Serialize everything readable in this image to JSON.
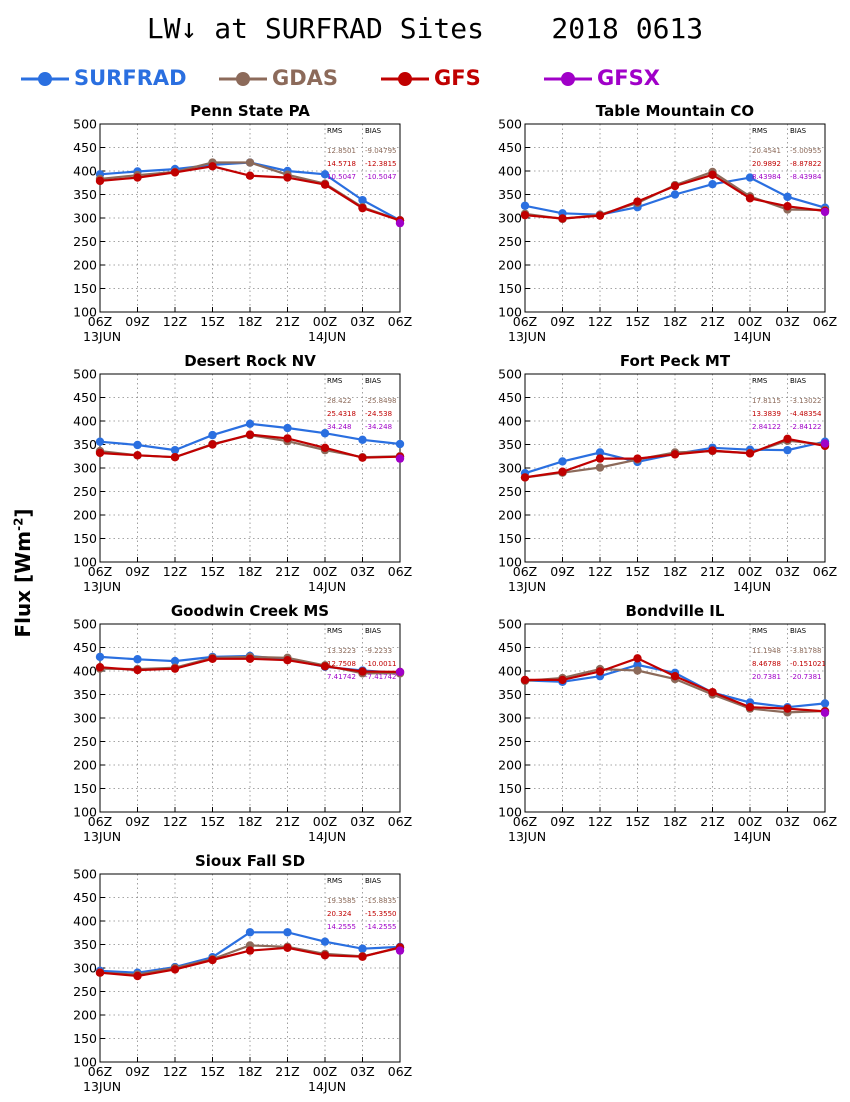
{
  "title": "LW↓ at SURFRAD Sites    2018 0613",
  "ylabel": "Flux [Wm",
  "ylabel_sup": "-2",
  "ylabel_close": "]",
  "legend": [
    {
      "name": "SURFRAD",
      "color": "#2a6fe0"
    },
    {
      "name": "GDAS",
      "color": "#8c6a5a"
    },
    {
      "name": "GFS",
      "color": "#c00000"
    },
    {
      "name": "GFSX",
      "color": "#a000c8"
    }
  ],
  "stat_headers": {
    "rms": "RMS",
    "bias": "BIAS"
  },
  "chart_data": [
    {
      "type": "line",
      "title": "Penn State PA",
      "x": [
        "06Z",
        "09Z",
        "12Z",
        "15Z",
        "18Z",
        "21Z",
        "00Z",
        "03Z",
        "06Z"
      ],
      "date_labels": [
        {
          "text": "13JUN",
          "at": 0
        },
        {
          "text": "14JUN",
          "at": 6
        }
      ],
      "ylim": [
        100,
        500
      ],
      "yticks": [
        100,
        150,
        200,
        250,
        300,
        350,
        400,
        450,
        500
      ],
      "grid": true,
      "series": [
        {
          "name": "SURFRAD",
          "color": "#2a6fe0",
          "values": [
            393,
            399,
            404,
            413,
            418,
            400,
            393,
            338,
            295
          ]
        },
        {
          "name": "GDAS",
          "color": "#8c6a5a",
          "values": [
            383,
            391,
            398,
            418,
            418,
            392,
            373,
            323,
            295
          ]
        },
        {
          "name": "GFS",
          "color": "#c00000",
          "values": [
            379,
            386,
            397,
            410,
            390,
            386,
            371,
            321,
            295
          ]
        },
        {
          "name": "GFSX",
          "color": "#a000c8",
          "values": [
            null,
            null,
            null,
            null,
            null,
            null,
            null,
            null,
            289
          ]
        }
      ],
      "stats": [
        {
          "color": "#8c6a5a",
          "rms": "12.8501",
          "bias": "-9.04795"
        },
        {
          "color": "#c00000",
          "rms": "14.5718",
          "bias": "-12.3815"
        },
        {
          "color": "#a000c8",
          "rms": "10.5047",
          "bias": "-10.5047"
        }
      ]
    },
    {
      "type": "line",
      "title": "Table Mountain CO",
      "x": [
        "06Z",
        "09Z",
        "12Z",
        "15Z",
        "18Z",
        "21Z",
        "00Z",
        "03Z",
        "06Z"
      ],
      "date_labels": [
        {
          "text": "13JUN",
          "at": 0
        },
        {
          "text": "14JUN",
          "at": 6
        }
      ],
      "ylim": [
        100,
        500
      ],
      "yticks": [
        100,
        150,
        200,
        250,
        300,
        350,
        400,
        450,
        500
      ],
      "grid": true,
      "series": [
        {
          "name": "SURFRAD",
          "color": "#2a6fe0",
          "values": [
            326,
            310,
            307,
            323,
            350,
            372,
            386,
            345,
            322
          ]
        },
        {
          "name": "GDAS",
          "color": "#8c6a5a",
          "values": [
            309,
            298,
            307,
            332,
            370,
            398,
            346,
            318,
            317
          ]
        },
        {
          "name": "GFS",
          "color": "#c00000",
          "values": [
            306,
            299,
            305,
            335,
            368,
            392,
            342,
            325,
            315
          ]
        },
        {
          "name": "GFSX",
          "color": "#a000c8",
          "values": [
            null,
            null,
            null,
            null,
            null,
            null,
            null,
            null,
            313
          ]
        }
      ],
      "stats": [
        {
          "color": "#8c6a5a",
          "rms": "20.4541",
          "bias": "-5.00955"
        },
        {
          "color": "#c00000",
          "rms": "20.9892",
          "bias": "-8.87822"
        },
        {
          "color": "#a000c8",
          "rms": "8.43984",
          "bias": "-8.43984"
        }
      ]
    },
    {
      "type": "line",
      "title": "Desert Rock NV",
      "x": [
        "06Z",
        "09Z",
        "12Z",
        "15Z",
        "18Z",
        "21Z",
        "00Z",
        "03Z",
        "06Z"
      ],
      "date_labels": [
        {
          "text": "13JUN",
          "at": 0
        },
        {
          "text": "14JUN",
          "at": 6
        }
      ],
      "ylim": [
        100,
        500
      ],
      "yticks": [
        100,
        150,
        200,
        250,
        300,
        350,
        400,
        450,
        500
      ],
      "grid": true,
      "series": [
        {
          "name": "SURFRAD",
          "color": "#2a6fe0",
          "values": [
            356,
            349,
            338,
            370,
            394,
            385,
            374,
            360,
            351
          ]
        },
        {
          "name": "GDAS",
          "color": "#8c6a5a",
          "values": [
            336,
            327,
            323,
            351,
            370,
            357,
            338,
            323,
            325
          ]
        },
        {
          "name": "GFS",
          "color": "#c00000",
          "values": [
            332,
            327,
            323,
            350,
            371,
            363,
            343,
            322,
            324
          ]
        },
        {
          "name": "GFSX",
          "color": "#a000c8",
          "values": [
            null,
            null,
            null,
            null,
            null,
            null,
            null,
            null,
            320
          ]
        }
      ],
      "stats": [
        {
          "color": "#8c6a5a",
          "rms": "28.422",
          "bias": "-25.8498"
        },
        {
          "color": "#c00000",
          "rms": "25.4318",
          "bias": "-24.538"
        },
        {
          "color": "#a000c8",
          "rms": "34.248",
          "bias": "-34.248"
        }
      ]
    },
    {
      "type": "line",
      "title": "Fort Peck MT",
      "x": [
        "06Z",
        "09Z",
        "12Z",
        "15Z",
        "18Z",
        "21Z",
        "00Z",
        "03Z",
        "06Z"
      ],
      "date_labels": [
        {
          "text": "13JUN",
          "at": 0
        },
        {
          "text": "14JUN",
          "at": 6
        }
      ],
      "ylim": [
        100,
        500
      ],
      "yticks": [
        100,
        150,
        200,
        250,
        300,
        350,
        400,
        450,
        500
      ],
      "grid": true,
      "series": [
        {
          "name": "SURFRAD",
          "color": "#2a6fe0",
          "values": [
            289,
            314,
            333,
            313,
            330,
            343,
            339,
            338,
            356
          ]
        },
        {
          "name": "GDAS",
          "color": "#8c6a5a",
          "values": [
            280,
            290,
            301,
            318,
            333,
            336,
            332,
            358,
            350
          ]
        },
        {
          "name": "GFS",
          "color": "#c00000",
          "values": [
            280,
            292,
            320,
            320,
            329,
            337,
            331,
            362,
            347
          ]
        },
        {
          "name": "GFSX",
          "color": "#a000c8",
          "values": [
            null,
            null,
            null,
            null,
            null,
            null,
            null,
            null,
            352
          ]
        }
      ],
      "stats": [
        {
          "color": "#8c6a5a",
          "rms": "17.8115",
          "bias": "-3.13022"
        },
        {
          "color": "#c00000",
          "rms": "13.3839",
          "bias": "-4.48354"
        },
        {
          "color": "#a000c8",
          "rms": "2.84122",
          "bias": "-2.84122"
        }
      ]
    },
    {
      "type": "line",
      "title": "Goodwin Creek MS",
      "x": [
        "06Z",
        "09Z",
        "12Z",
        "15Z",
        "18Z",
        "21Z",
        "00Z",
        "03Z",
        "06Z"
      ],
      "date_labels": [
        {
          "text": "13JUN",
          "at": 0
        },
        {
          "text": "14JUN",
          "at": 6
        }
      ],
      "ylim": [
        100,
        500
      ],
      "yticks": [
        100,
        150,
        200,
        250,
        300,
        350,
        400,
        450,
        500
      ],
      "grid": true,
      "series": [
        {
          "name": "SURFRAD",
          "color": "#2a6fe0",
          "values": [
            430,
            425,
            421,
            430,
            432,
            425,
            409,
            401,
            396
          ]
        },
        {
          "name": "GDAS",
          "color": "#8c6a5a",
          "values": [
            405,
            404,
            407,
            428,
            430,
            428,
            412,
            395,
            395
          ]
        },
        {
          "name": "GFS",
          "color": "#c00000",
          "values": [
            408,
            402,
            405,
            426,
            426,
            423,
            410,
            399,
            398
          ]
        },
        {
          "name": "GFSX",
          "color": "#a000c8",
          "values": [
            null,
            null,
            null,
            null,
            null,
            null,
            null,
            null,
            398
          ]
        }
      ],
      "stats": [
        {
          "color": "#8c6a5a",
          "rms": "13.3223",
          "bias": "-9.2233"
        },
        {
          "color": "#c00000",
          "rms": "12.7508",
          "bias": "-10.0011"
        },
        {
          "color": "#a000c8",
          "rms": "7.41742",
          "bias": "-7.41742"
        }
      ]
    },
    {
      "type": "line",
      "title": "Bondville IL",
      "x": [
        "06Z",
        "09Z",
        "12Z",
        "15Z",
        "18Z",
        "21Z",
        "00Z",
        "03Z",
        "06Z"
      ],
      "date_labels": [
        {
          "text": "13JUN",
          "at": 0
        },
        {
          "text": "14JUN",
          "at": 6
        }
      ],
      "ylim": [
        100,
        500
      ],
      "yticks": [
        100,
        150,
        200,
        250,
        300,
        350,
        400,
        450,
        500
      ],
      "grid": true,
      "series": [
        {
          "name": "SURFRAD",
          "color": "#2a6fe0",
          "values": [
            380,
            377,
            389,
            413,
            396,
            354,
            333,
            323,
            331
          ]
        },
        {
          "name": "GDAS",
          "color": "#8c6a5a",
          "values": [
            379,
            385,
            404,
            401,
            383,
            350,
            320,
            312,
            315
          ]
        },
        {
          "name": "GFS",
          "color": "#c00000",
          "values": [
            381,
            381,
            399,
            427,
            389,
            355,
            323,
            320,
            314
          ]
        },
        {
          "name": "GFSX",
          "color": "#a000c8",
          "values": [
            null,
            null,
            null,
            null,
            null,
            null,
            null,
            null,
            311
          ]
        }
      ],
      "stats": [
        {
          "color": "#8c6a5a",
          "rms": "11.1948",
          "bias": "-3.81788"
        },
        {
          "color": "#c00000",
          "rms": "8.46788",
          "bias": "-0.151021"
        },
        {
          "color": "#a000c8",
          "rms": "20.7381",
          "bias": "-20.7381"
        }
      ]
    },
    {
      "type": "line",
      "title": "Sioux Fall SD",
      "x": [
        "06Z",
        "09Z",
        "12Z",
        "15Z",
        "18Z",
        "21Z",
        "00Z",
        "03Z",
        "06Z"
      ],
      "date_labels": [
        {
          "text": "13JUN",
          "at": 0
        },
        {
          "text": "14JUN",
          "at": 6
        }
      ],
      "ylim": [
        100,
        500
      ],
      "yticks": [
        100,
        150,
        200,
        250,
        300,
        350,
        400,
        450,
        500
      ],
      "grid": true,
      "series": [
        {
          "name": "SURFRAD",
          "color": "#2a6fe0",
          "values": [
            294,
            290,
            302,
            323,
            376,
            376,
            356,
            341,
            345
          ]
        },
        {
          "name": "GDAS",
          "color": "#8c6a5a",
          "values": [
            290,
            286,
            300,
            319,
            348,
            345,
            330,
            325,
            343
          ]
        },
        {
          "name": "GFS",
          "color": "#c00000",
          "values": [
            290,
            283,
            297,
            317,
            337,
            343,
            327,
            324,
            344
          ]
        },
        {
          "name": "GFSX",
          "color": "#a000c8",
          "values": [
            null,
            null,
            null,
            null,
            null,
            null,
            null,
            null,
            337
          ]
        }
      ],
      "stats": [
        {
          "color": "#8c6a5a",
          "rms": "19.3585",
          "bias": "-15.8835"
        },
        {
          "color": "#c00000",
          "rms": "20.324",
          "bias": "-15.3550"
        },
        {
          "color": "#a000c8",
          "rms": "14.2555",
          "bias": "-14.2555"
        }
      ]
    }
  ]
}
